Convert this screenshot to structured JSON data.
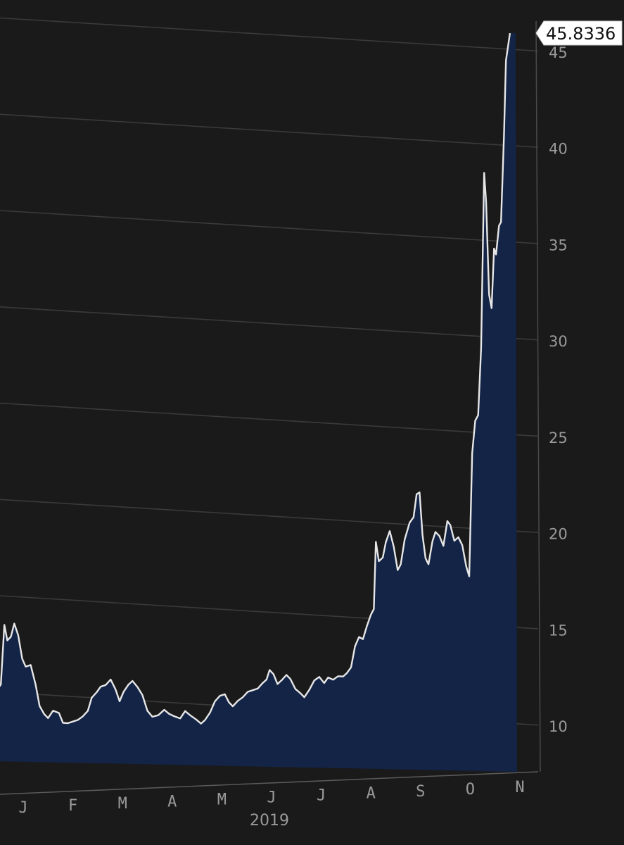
{
  "chart_data": {
    "type": "area",
    "title": "",
    "xlabel": "",
    "ylabel": "",
    "year_label": "2019",
    "last_value_label": "45.8336",
    "yticks": [
      10,
      15,
      20,
      25,
      30,
      35,
      40,
      45
    ],
    "ylim": [
      7.5,
      46.8
    ],
    "months": [
      "J",
      "F",
      "M",
      "A",
      "M",
      "J",
      "J",
      "A",
      "S",
      "O",
      "N"
    ],
    "x_unit": "month index (0 = start of January 2019)",
    "grid": true,
    "colors": {
      "background": "#1a1a1a",
      "line": "#e6e6e6",
      "fill": "#132447",
      "grid": "#3a3a3a",
      "text": "#9a9a9a"
    },
    "series": [
      {
        "points": [
          [
            -0.5,
            10.2
          ],
          [
            -0.45,
            10.4
          ],
          [
            -0.38,
            13.5
          ],
          [
            -0.32,
            12.7
          ],
          [
            -0.25,
            12.9
          ],
          [
            -0.18,
            13.6
          ],
          [
            -0.1,
            13.0
          ],
          [
            -0.02,
            11.8
          ],
          [
            0.05,
            11.4
          ],
          [
            0.15,
            11.5
          ],
          [
            0.25,
            10.5
          ],
          [
            0.33,
            9.4
          ],
          [
            0.42,
            9.0
          ],
          [
            0.5,
            8.8
          ],
          [
            0.6,
            9.2
          ],
          [
            0.72,
            9.1
          ],
          [
            0.8,
            8.6
          ],
          [
            0.9,
            8.6
          ],
          [
            1.0,
            8.7
          ],
          [
            1.1,
            8.8
          ],
          [
            1.2,
            9.0
          ],
          [
            1.3,
            9.3
          ],
          [
            1.38,
            10.0
          ],
          [
            1.48,
            10.3
          ],
          [
            1.56,
            10.6
          ],
          [
            1.66,
            10.7
          ],
          [
            1.76,
            11.0
          ],
          [
            1.86,
            10.5
          ],
          [
            1.94,
            9.9
          ],
          [
            2.02,
            10.4
          ],
          [
            2.12,
            10.8
          ],
          [
            2.2,
            11.0
          ],
          [
            2.3,
            10.7
          ],
          [
            2.4,
            10.3
          ],
          [
            2.5,
            9.5
          ],
          [
            2.6,
            9.2
          ],
          [
            2.72,
            9.3
          ],
          [
            2.84,
            9.6
          ],
          [
            2.94,
            9.4
          ],
          [
            3.04,
            9.3
          ],
          [
            3.16,
            9.2
          ],
          [
            3.26,
            9.6
          ],
          [
            3.36,
            9.4
          ],
          [
            3.48,
            9.2
          ],
          [
            3.58,
            9.0
          ],
          [
            3.66,
            9.2
          ],
          [
            3.76,
            9.6
          ],
          [
            3.86,
            10.2
          ],
          [
            3.96,
            10.5
          ],
          [
            4.06,
            10.6
          ],
          [
            4.14,
            10.2
          ],
          [
            4.22,
            10.0
          ],
          [
            4.32,
            10.3
          ],
          [
            4.42,
            10.5
          ],
          [
            4.52,
            10.8
          ],
          [
            4.62,
            10.9
          ],
          [
            4.72,
            11.0
          ],
          [
            4.82,
            11.3
          ],
          [
            4.9,
            11.5
          ],
          [
            4.96,
            12.0
          ],
          [
            5.04,
            11.8
          ],
          [
            5.12,
            11.3
          ],
          [
            5.2,
            11.5
          ],
          [
            5.3,
            11.8
          ],
          [
            5.38,
            11.6
          ],
          [
            5.48,
            11.1
          ],
          [
            5.58,
            10.9
          ],
          [
            5.66,
            10.7
          ],
          [
            5.76,
            11.1
          ],
          [
            5.86,
            11.6
          ],
          [
            5.96,
            11.8
          ],
          [
            6.06,
            11.5
          ],
          [
            6.14,
            11.8
          ],
          [
            6.24,
            11.7
          ],
          [
            6.34,
            11.9
          ],
          [
            6.44,
            11.9
          ],
          [
            6.52,
            12.1
          ],
          [
            6.6,
            12.4
          ],
          [
            6.68,
            13.5
          ],
          [
            6.76,
            14.0
          ],
          [
            6.84,
            13.9
          ],
          [
            6.92,
            14.6
          ],
          [
            7.0,
            15.2
          ],
          [
            7.06,
            15.5
          ],
          [
            7.1,
            19.0
          ],
          [
            7.16,
            18.0
          ],
          [
            7.24,
            18.2
          ],
          [
            7.3,
            19.0
          ],
          [
            7.38,
            19.6
          ],
          [
            7.46,
            18.8
          ],
          [
            7.54,
            17.6
          ],
          [
            7.6,
            17.9
          ],
          [
            7.68,
            19.2
          ],
          [
            7.78,
            20.1
          ],
          [
            7.86,
            20.4
          ],
          [
            7.92,
            21.6
          ],
          [
            7.98,
            21.7
          ],
          [
            8.04,
            19.5
          ],
          [
            8.1,
            18.3
          ],
          [
            8.16,
            18.0
          ],
          [
            8.24,
            19.2
          ],
          [
            8.3,
            19.7
          ],
          [
            8.38,
            19.5
          ],
          [
            8.46,
            19.0
          ],
          [
            8.54,
            20.3
          ],
          [
            8.6,
            20.1
          ],
          [
            8.68,
            19.3
          ],
          [
            8.76,
            19.5
          ],
          [
            8.84,
            19.1
          ],
          [
            8.92,
            18.0
          ],
          [
            8.98,
            17.5
          ],
          [
            9.04,
            23.9
          ],
          [
            9.1,
            25.6
          ],
          [
            9.16,
            25.9
          ],
          [
            9.22,
            29.4
          ],
          [
            9.28,
            38.5
          ],
          [
            9.32,
            37.0
          ],
          [
            9.38,
            32.2
          ],
          [
            9.43,
            31.5
          ],
          [
            9.48,
            34.6
          ],
          [
            9.52,
            34.3
          ],
          [
            9.58,
            35.8
          ],
          [
            9.62,
            36.0
          ],
          [
            9.68,
            40.5
          ],
          [
            9.72,
            44.4
          ],
          [
            9.8,
            45.8336
          ]
        ]
      }
    ]
  }
}
